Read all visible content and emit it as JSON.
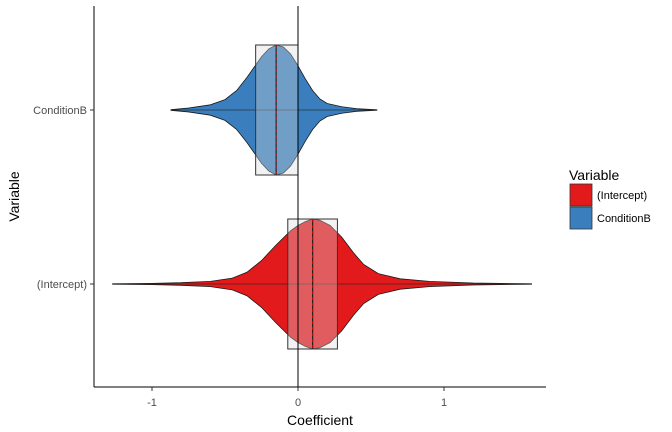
{
  "chart_data": {
    "type": "violin",
    "xlabel": "Coefficient",
    "ylabel": "Variable",
    "xlim": [
      -1.4,
      1.7
    ],
    "x_ticks": [
      -1,
      0,
      1
    ],
    "x_tick_labels": [
      "-1",
      "0",
      "1"
    ],
    "reference_line_x": 0,
    "grid": false,
    "legend_position": "right",
    "legend": {
      "title": "Variable",
      "entries": [
        {
          "label": "(Intercept)",
          "color": "#e31a1c"
        },
        {
          "label": "ConditionB",
          "color": "#3a7ebd"
        }
      ]
    },
    "series": [
      {
        "category": "ConditionB",
        "color": "#3a7ebd",
        "median": -0.15,
        "mean": -0.15,
        "q1": -0.29,
        "q3": 0.0,
        "min": -0.87,
        "max": 0.54,
        "density": [
          [
            -0.87,
            0.005
          ],
          [
            -0.75,
            0.03
          ],
          [
            -0.6,
            0.08
          ],
          [
            -0.5,
            0.16
          ],
          [
            -0.42,
            0.3
          ],
          [
            -0.35,
            0.5
          ],
          [
            -0.3,
            0.66
          ],
          [
            -0.25,
            0.82
          ],
          [
            -0.2,
            0.94
          ],
          [
            -0.15,
            1.0
          ],
          [
            -0.1,
            0.97
          ],
          [
            -0.05,
            0.86
          ],
          [
            0.0,
            0.68
          ],
          [
            0.05,
            0.48
          ],
          [
            0.1,
            0.3
          ],
          [
            0.15,
            0.17
          ],
          [
            0.2,
            0.1
          ],
          [
            0.3,
            0.05
          ],
          [
            0.4,
            0.02
          ],
          [
            0.54,
            0.003
          ]
        ]
      },
      {
        "category": "(Intercept)",
        "color": "#e31a1c",
        "median": 0.1,
        "mean": 0.1,
        "q1": -0.07,
        "q3": 0.27,
        "min": -1.27,
        "max": 1.6,
        "density": [
          [
            -1.27,
            0.003
          ],
          [
            -1.0,
            0.01
          ],
          [
            -0.8,
            0.02
          ],
          [
            -0.6,
            0.04
          ],
          [
            -0.45,
            0.09
          ],
          [
            -0.35,
            0.18
          ],
          [
            -0.25,
            0.36
          ],
          [
            -0.15,
            0.6
          ],
          [
            -0.05,
            0.82
          ],
          [
            0.0,
            0.9
          ],
          [
            0.05,
            0.96
          ],
          [
            0.1,
            1.0
          ],
          [
            0.15,
            0.98
          ],
          [
            0.22,
            0.9
          ],
          [
            0.3,
            0.72
          ],
          [
            0.38,
            0.48
          ],
          [
            0.45,
            0.3
          ],
          [
            0.55,
            0.16
          ],
          [
            0.7,
            0.08
          ],
          [
            0.9,
            0.04
          ],
          [
            1.2,
            0.015
          ],
          [
            1.6,
            0.003
          ]
        ]
      }
    ]
  }
}
